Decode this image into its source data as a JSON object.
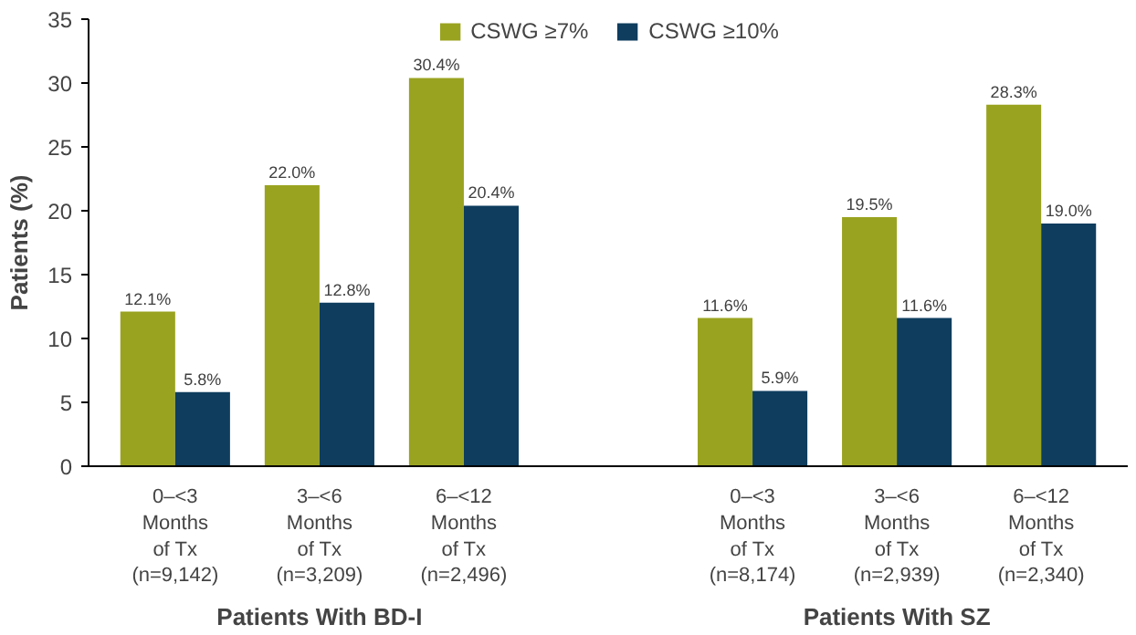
{
  "chart_data": {
    "type": "bar",
    "ylabel": "Patients (%)",
    "categories": [
      "0–<3\nMonths\nof Tx\n(n=9,142)",
      "3–<6\nMonths\nof Tx\n(n=3,209)",
      "6–<12\nMonths\nof Tx\n(n=2,496)",
      "0–<3\nMonths\nof Tx\n(n=8,174)",
      "3–<6\nMonths\nof Tx\n(n=2,939)",
      "6–<12\nMonths\nof Tx\n(n=2,340)"
    ],
    "series": [
      {
        "name": "CSWG ≥7%",
        "color": "#9aa320",
        "values": [
          12.1,
          22.0,
          30.4,
          11.6,
          19.5,
          28.3
        ],
        "value_labels": [
          "12.1%",
          "22.0%",
          "30.4%",
          "11.6%",
          "19.5%",
          "28.3%"
        ]
      },
      {
        "name": "CSWG ≥10%",
        "color": "#0e3d5e",
        "values": [
          5.8,
          12.8,
          20.4,
          5.9,
          11.6,
          19.0
        ],
        "value_labels": [
          "5.8%",
          "12.8%",
          "20.4%",
          "5.9%",
          "11.6%",
          "19.0%"
        ]
      }
    ],
    "annotations": [
      "Patients With BD-I",
      "Patients With SZ"
    ],
    "ylim": [
      0,
      35
    ],
    "yticks": [
      0,
      5,
      10,
      15,
      20,
      25,
      30,
      35
    ],
    "grid": false,
    "legend": "top"
  }
}
